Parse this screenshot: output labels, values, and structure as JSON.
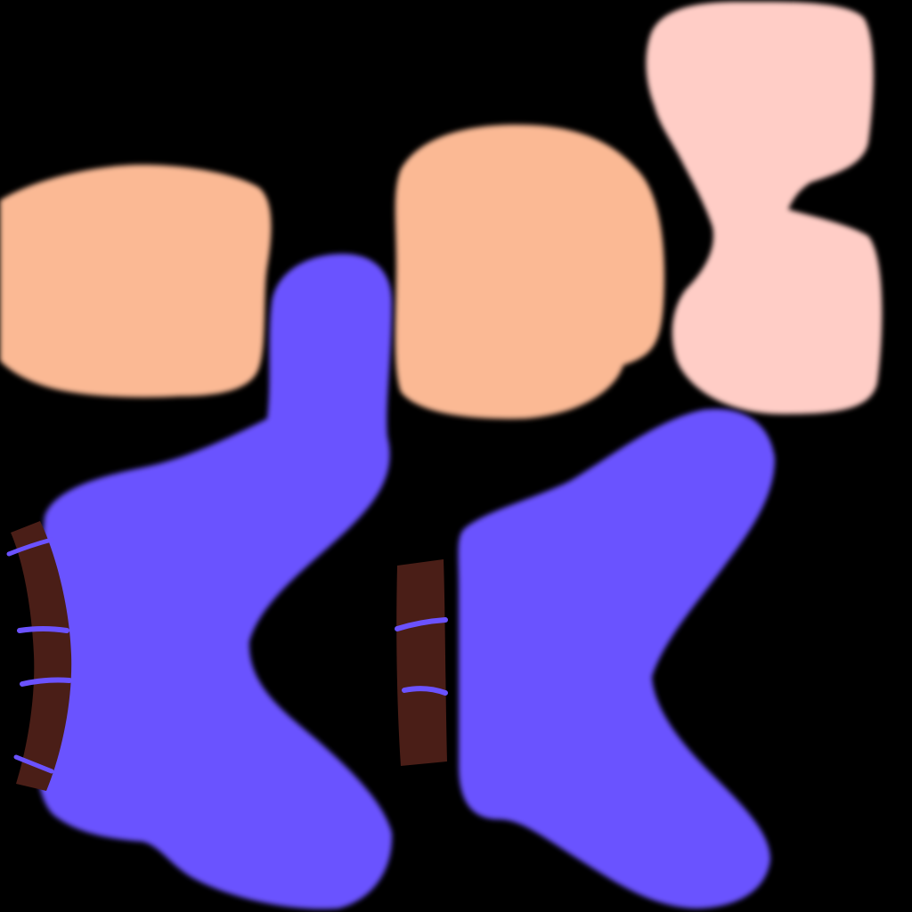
{
  "canvas": {
    "background": "#000000"
  },
  "colors": {
    "skin": "#FBB994",
    "pink": "#FFCDC6",
    "purple": "#6B52FF",
    "brown": "#4A1E17"
  },
  "shapes": [
    {
      "name": "skin-patch-left",
      "kind": "skin-patch"
    },
    {
      "name": "skin-patch-center",
      "kind": "skin-patch"
    },
    {
      "name": "pink-bow-shape",
      "kind": "bow"
    },
    {
      "name": "purple-mitten-left",
      "kind": "mitten"
    },
    {
      "name": "purple-mitten-right",
      "kind": "mitten"
    },
    {
      "name": "brown-cuff-left",
      "kind": "cuff"
    },
    {
      "name": "brown-cuff-right",
      "kind": "cuff"
    }
  ]
}
